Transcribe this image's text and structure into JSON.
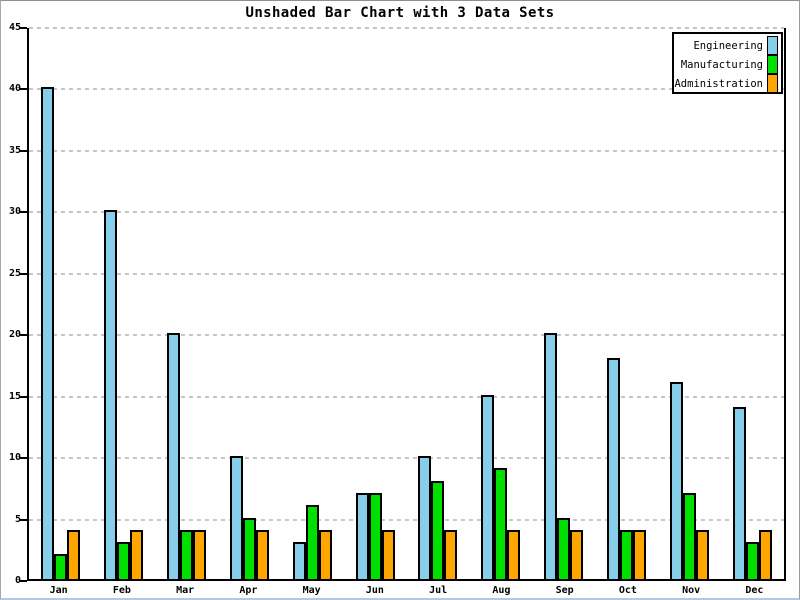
{
  "chart_data": {
    "type": "bar",
    "title": "Unshaded Bar Chart with 3 Data Sets",
    "categories": [
      "Jan",
      "Feb",
      "Mar",
      "Apr",
      "May",
      "Jun",
      "Jul",
      "Aug",
      "Sep",
      "Oct",
      "Nov",
      "Dec"
    ],
    "series": [
      {
        "name": "Engineering",
        "color": "#87CEEB",
        "values": [
          40,
          30,
          20,
          10,
          3,
          7,
          10,
          15,
          20,
          18,
          16,
          14
        ]
      },
      {
        "name": "Manufacturing",
        "color": "#00E000",
        "values": [
          2,
          3,
          4,
          5,
          6,
          7,
          8,
          9,
          5,
          4,
          7,
          3
        ]
      },
      {
        "name": "Administration",
        "color": "#FFA500",
        "values": [
          4,
          4,
          4,
          4,
          4,
          4,
          4,
          4,
          4,
          4,
          4,
          4
        ]
      }
    ],
    "xlabel": "",
    "ylabel": "",
    "ylim": [
      0,
      45
    ],
    "yticks": [
      0,
      5,
      10,
      15,
      20,
      25,
      30,
      35,
      40,
      45
    ],
    "grid": true,
    "gridline_color": "#c6c6c6",
    "bar_outline_color": "#000000",
    "axis_color": "#000000",
    "legend_position": "top-right",
    "legend_entries": [
      "Engineering",
      "Manufacturing",
      "Administration"
    ]
  }
}
